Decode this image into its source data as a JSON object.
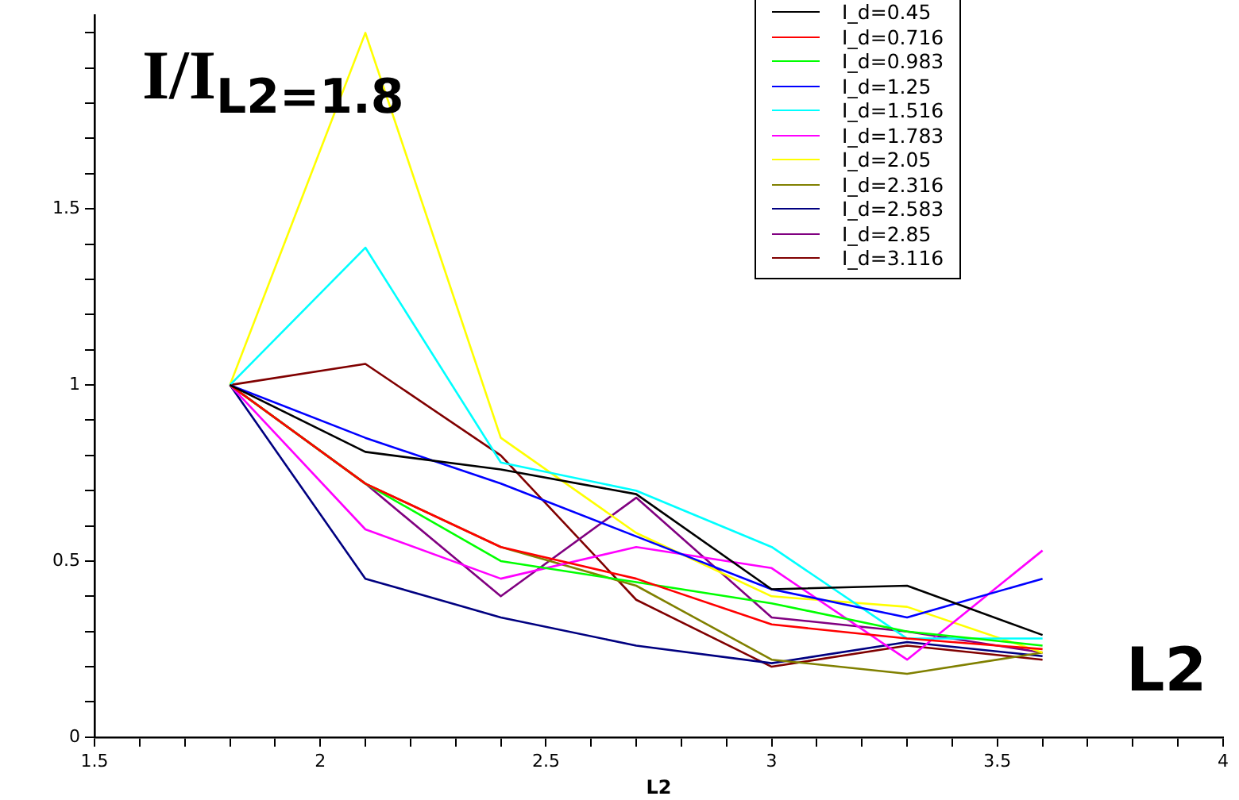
{
  "chart_data": {
    "type": "line",
    "xlabel": "L2",
    "annotations": [
      "I/I$_{L2=1.8}$",
      "L2"
    ],
    "x": [
      1.8,
      2.1,
      2.4,
      2.7,
      3.0,
      3.3,
      3.6
    ],
    "xlim": [
      1.5,
      4
    ],
    "xticks": [
      1.5,
      {
        "value": 1.6,
        "label": null
      },
      {
        "value": 1.7,
        "label": null
      },
      {
        "value": 1.8,
        "label": null
      },
      {
        "value": 1.9,
        "label": null
      },
      2,
      {
        "value": 2.1,
        "label": null
      },
      {
        "value": 2.2,
        "label": null
      },
      {
        "value": 2.3,
        "label": null
      },
      {
        "value": 2.4,
        "label": null
      },
      2.5,
      {
        "value": 2.6,
        "label": null
      },
      {
        "value": 2.7,
        "label": null
      },
      {
        "value": 2.8,
        "label": null
      },
      {
        "value": 2.9,
        "label": null
      },
      3,
      {
        "value": 3.1,
        "label": null
      },
      {
        "value": 3.2,
        "label": null
      },
      {
        "value": 3.3,
        "label": null
      },
      {
        "value": 3.4,
        "label": null
      },
      3.5,
      {
        "value": 3.6,
        "label": null
      },
      {
        "value": 3.7,
        "label": null
      },
      {
        "value": 3.8,
        "label": null
      },
      {
        "value": 3.9,
        "label": null
      },
      4
    ],
    "ylim": [
      0,
      2.05
    ],
    "yticks": [
      0,
      {
        "value": 0.1,
        "label": null
      },
      {
        "value": 0.2,
        "label": null
      },
      {
        "value": 0.3,
        "label": null
      },
      {
        "value": 0.4,
        "label": null
      },
      0.5,
      {
        "value": 0.6,
        "label": null
      },
      {
        "value": 0.7,
        "label": null
      },
      {
        "value": 0.8,
        "label": null
      },
      {
        "value": 0.9,
        "label": null
      },
      1,
      {
        "value": 1.1,
        "label": null
      },
      {
        "value": 1.2,
        "label": null
      },
      {
        "value": 1.3,
        "label": null
      },
      {
        "value": 1.4,
        "label": null
      },
      1.5,
      {
        "value": 1.6,
        "label": null
      },
      {
        "value": 1.7,
        "label": null
      },
      {
        "value": 1.8,
        "label": null
      },
      {
        "value": 1.9,
        "label": null
      },
      {
        "value": 2.0,
        "label": null
      }
    ],
    "grid": false,
    "legend": "top right",
    "marker": "none",
    "line_style": "solid",
    "series": [
      {
        "name": "I_d=0.45",
        "color": "#000000",
        "values": [
          1,
          0.81,
          0.76,
          0.69,
          0.42,
          0.43,
          0.29
        ]
      },
      {
        "name": "I_d=0.716",
        "color": "#ff0000",
        "values": [
          1,
          0.72,
          0.54,
          0.45,
          0.32,
          0.28,
          0.25
        ]
      },
      {
        "name": "I_d=0.983",
        "color": "#00ff00",
        "values": [
          1,
          0.72,
          0.5,
          0.44,
          0.38,
          0.3,
          0.26
        ]
      },
      {
        "name": "I_d=1.25",
        "color": "#0000ff",
        "values": [
          1,
          0.85,
          0.72,
          0.57,
          0.42,
          0.34,
          0.45
        ]
      },
      {
        "name": "I_d=1.516",
        "color": "#00ffff",
        "values": [
          1,
          1.39,
          0.78,
          0.7,
          0.54,
          0.28,
          0.28
        ]
      },
      {
        "name": "I_d=1.783",
        "color": "#ff00ff",
        "values": [
          1,
          0.59,
          0.45,
          0.54,
          0.48,
          0.22,
          0.53
        ]
      },
      {
        "name": "I_d=2.05",
        "color": "#ffff00",
        "values": [
          1,
          2.0,
          0.85,
          0.58,
          0.4,
          0.37,
          0.24
        ]
      },
      {
        "name": "I_d=2.316",
        "color": "#808000",
        "values": [
          1,
          0.72,
          0.54,
          0.43,
          0.22,
          0.18,
          0.24
        ]
      },
      {
        "name": "I_d=2.583",
        "color": "#000080",
        "values": [
          1,
          0.45,
          0.34,
          0.26,
          0.21,
          0.27,
          0.23
        ]
      },
      {
        "name": "I_d=2.85",
        "color": "#800080",
        "values": [
          1,
          0.72,
          0.4,
          0.68,
          0.34,
          0.3,
          0.24
        ]
      },
      {
        "name": "I_d=3.116",
        "color": "#800000",
        "values": [
          1,
          1.06,
          0.8,
          0.39,
          0.2,
          0.26,
          0.22
        ]
      }
    ]
  }
}
